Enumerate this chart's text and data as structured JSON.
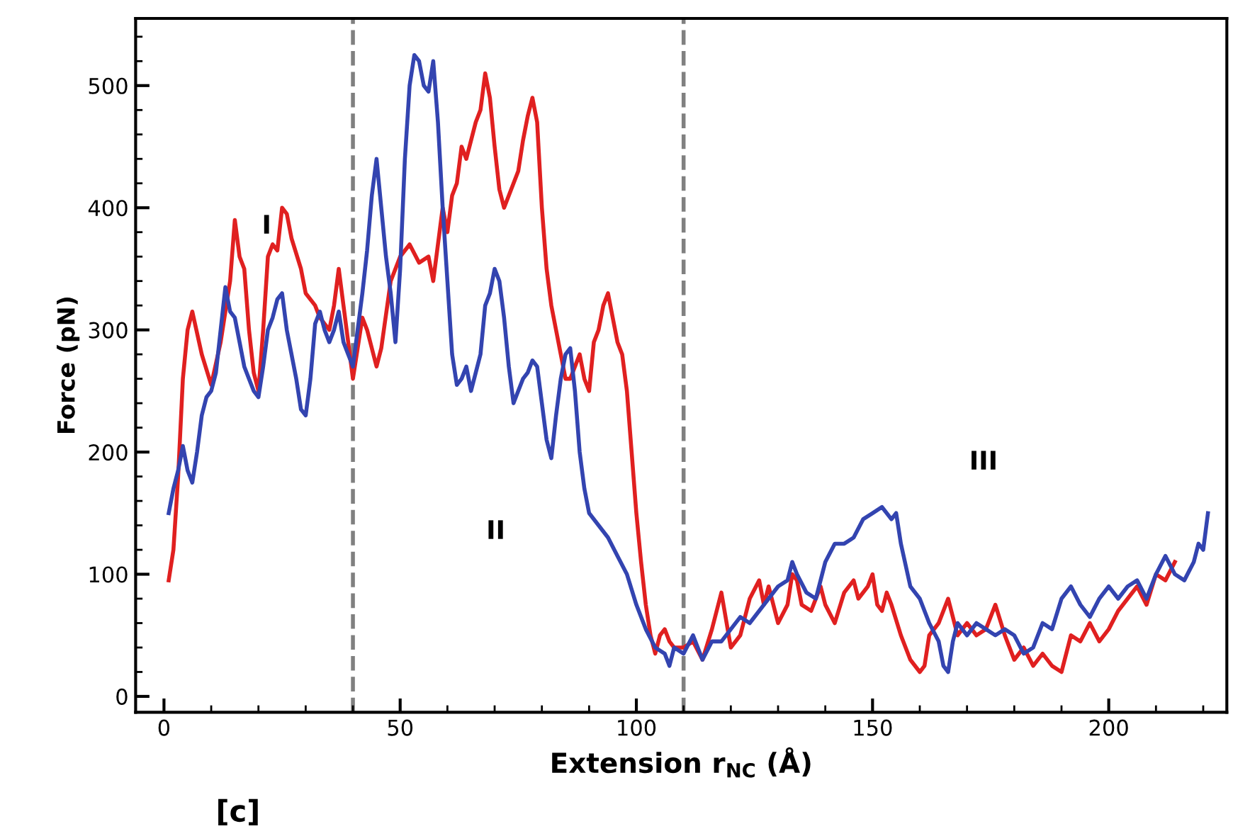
{
  "chart_data": {
    "type": "line",
    "xlabel": "Extension r$_{NC}$ (Å)",
    "ylabel": "Force (pN)",
    "xlim": [
      -6,
      225
    ],
    "ylim": [
      -13,
      555
    ],
    "xticks": [
      0,
      50,
      100,
      150,
      200
    ],
    "yticks": [
      0,
      100,
      200,
      300,
      400,
      500
    ],
    "grid": false,
    "marker": "none",
    "line_style": "solid",
    "ref_lines": [
      {
        "axis": "x",
        "value": 40,
        "color": "#808080",
        "line_style": "dashed"
      },
      {
        "axis": "x",
        "value": 110,
        "color": "#808080",
        "line_style": "dashed"
      }
    ],
    "annotations": [
      "I",
      "II",
      "III",
      "[c]"
    ],
    "series": [
      {
        "color": "#e02020",
        "x": [
          1,
          2,
          3,
          4,
          5,
          6,
          8,
          10,
          12,
          14,
          15,
          16,
          17,
          18,
          19,
          20,
          21,
          22,
          23,
          24,
          25,
          26,
          27,
          29,
          30,
          32,
          33,
          35,
          36,
          37,
          38,
          39,
          40,
          41,
          42,
          43,
          45,
          46,
          48,
          50,
          52,
          54,
          56,
          57,
          58,
          59,
          60,
          61,
          62,
          63,
          64,
          66,
          67,
          68,
          69,
          70,
          71,
          72,
          73,
          74,
          75,
          76,
          77,
          78,
          79,
          80,
          81,
          82,
          83,
          84,
          85,
          86,
          87,
          88,
          89,
          90,
          91,
          92,
          93,
          94,
          95,
          96,
          97,
          98,
          99,
          100,
          101,
          102,
          103,
          104,
          105,
          106,
          107,
          108,
          110,
          112,
          114,
          116,
          118,
          120,
          122,
          124,
          126,
          127,
          128,
          130,
          132,
          133,
          134,
          135,
          137,
          139,
          140,
          142,
          144,
          146,
          147,
          149,
          150,
          151,
          152,
          153,
          154,
          156,
          158,
          160,
          161,
          162,
          164,
          166,
          168,
          170,
          172,
          174,
          176,
          178,
          180,
          182,
          184,
          186,
          188,
          190,
          192,
          194,
          196,
          198,
          200,
          202,
          204,
          206,
          208,
          210,
          212,
          214
        ],
        "values": [
          95,
          120,
          180,
          260,
          300,
          315,
          280,
          255,
          290,
          340,
          390,
          360,
          350,
          300,
          265,
          250,
          300,
          360,
          370,
          365,
          400,
          395,
          375,
          350,
          330,
          320,
          310,
          300,
          320,
          350,
          320,
          290,
          260,
          285,
          310,
          300,
          270,
          285,
          340,
          360,
          370,
          355,
          360,
          340,
          370,
          400,
          380,
          410,
          420,
          450,
          440,
          470,
          480,
          510,
          490,
          450,
          415,
          400,
          410,
          420,
          430,
          455,
          475,
          490,
          470,
          400,
          350,
          320,
          300,
          280,
          260,
          260,
          270,
          280,
          260,
          250,
          290,
          300,
          320,
          330,
          310,
          290,
          280,
          250,
          200,
          150,
          110,
          75,
          50,
          35,
          50,
          55,
          45,
          40,
          40,
          45,
          30,
          55,
          85,
          40,
          50,
          80,
          95,
          75,
          90,
          60,
          75,
          100,
          95,
          75,
          70,
          90,
          75,
          60,
          85,
          95,
          80,
          90,
          100,
          75,
          70,
          85,
          75,
          50,
          30,
          20,
          25,
          50,
          60,
          80,
          50,
          60,
          50,
          55,
          75,
          50,
          30,
          40,
          25,
          35,
          25,
          20,
          50,
          45,
          60,
          45,
          55,
          70,
          80,
          90,
          75,
          100,
          95,
          110
        ]
      },
      {
        "color": "#3344b0",
        "x": [
          1,
          2,
          3,
          4,
          5,
          6,
          7,
          8,
          9,
          10,
          11,
          12,
          13,
          14,
          15,
          16,
          17,
          18,
          19,
          20,
          21,
          22,
          23,
          24,
          25,
          26,
          27,
          28,
          29,
          30,
          31,
          32,
          33,
          34,
          35,
          36,
          37,
          38,
          39,
          40,
          41,
          42,
          43,
          44,
          45,
          46,
          47,
          48,
          49,
          50,
          51,
          52,
          53,
          54,
          55,
          56,
          57,
          58,
          59,
          60,
          61,
          62,
          63,
          64,
          65,
          66,
          67,
          68,
          69,
          70,
          71,
          72,
          73,
          74,
          75,
          76,
          77,
          78,
          79,
          80,
          81,
          82,
          83,
          84,
          85,
          86,
          87,
          88,
          89,
          90,
          92,
          94,
          96,
          98,
          100,
          102,
          104,
          106,
          107,
          108,
          110,
          112,
          114,
          116,
          118,
          120,
          122,
          124,
          126,
          128,
          130,
          132,
          133,
          134,
          136,
          138,
          140,
          142,
          144,
          146,
          148,
          150,
          152,
          154,
          155,
          156,
          158,
          160,
          162,
          164,
          165,
          166,
          167,
          168,
          170,
          172,
          174,
          176,
          178,
          180,
          182,
          184,
          186,
          188,
          190,
          192,
          194,
          196,
          198,
          200,
          202,
          204,
          206,
          208,
          210,
          212,
          214,
          216,
          218,
          219,
          220,
          221
        ],
        "values": [
          150,
          170,
          185,
          205,
          185,
          175,
          200,
          230,
          245,
          250,
          265,
          300,
          335,
          315,
          310,
          290,
          270,
          260,
          250,
          245,
          270,
          300,
          310,
          325,
          330,
          300,
          280,
          260,
          235,
          230,
          260,
          305,
          315,
          300,
          290,
          300,
          315,
          290,
          280,
          270,
          300,
          330,
          365,
          410,
          440,
          400,
          360,
          330,
          290,
          350,
          440,
          500,
          525,
          520,
          500,
          495,
          520,
          470,
          400,
          340,
          280,
          255,
          260,
          270,
          250,
          265,
          280,
          320,
          330,
          350,
          340,
          310,
          270,
          240,
          250,
          260,
          265,
          275,
          270,
          240,
          210,
          195,
          230,
          260,
          280,
          285,
          250,
          200,
          170,
          150,
          140,
          130,
          115,
          100,
          75,
          55,
          40,
          35,
          25,
          40,
          35,
          50,
          30,
          45,
          45,
          55,
          65,
          60,
          70,
          80,
          90,
          95,
          110,
          100,
          85,
          80,
          110,
          125,
          125,
          130,
          145,
          150,
          155,
          145,
          150,
          125,
          90,
          80,
          60,
          45,
          25,
          20,
          45,
          60,
          50,
          60,
          55,
          50,
          55,
          50,
          35,
          40,
          60,
          55,
          80,
          90,
          75,
          65,
          80,
          90,
          80,
          90,
          95,
          80,
          100,
          115,
          100,
          95,
          110,
          125,
          120,
          150
        ]
      }
    ]
  }
}
